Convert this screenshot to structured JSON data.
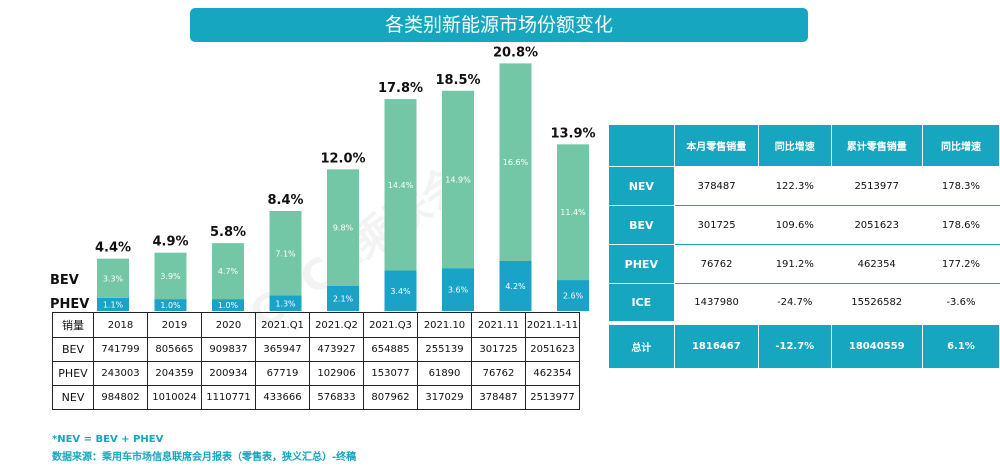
{
  "title": "各类别新能源市场份额变化",
  "series_labels": {
    "bev": "BEV",
    "phev": "PHEV"
  },
  "colors": {
    "bev": "#74c7a6",
    "phev": "#19a3c8",
    "accent": "#16a6bf"
  },
  "chart_data": {
    "type": "bar",
    "stacked": true,
    "categories": [
      "2018",
      "2019",
      "2020",
      "2021.Q1",
      "2021.Q2",
      "2021.Q3",
      "2021.10",
      "2021.11",
      "2021.1-11"
    ],
    "series": [
      {
        "name": "PHEV",
        "values": [
          1.1,
          1.0,
          1.0,
          1.3,
          2.1,
          3.4,
          3.6,
          4.2,
          2.6
        ],
        "labels": [
          "1.1%",
          "1.0%",
          "1.0%",
          "1.3%",
          "2.1%",
          "3.4%",
          "3.6%",
          "4.2%",
          "2.6%"
        ]
      },
      {
        "name": "BEV",
        "values": [
          3.3,
          3.9,
          4.7,
          7.1,
          9.8,
          14.4,
          14.9,
          16.6,
          11.4
        ],
        "labels": [
          "3.3%",
          "3.9%",
          "4.7%",
          "7.1%",
          "9.8%",
          "14.4%",
          "14.9%",
          "16.6%",
          "11.4%"
        ]
      }
    ],
    "totals": [
      4.4,
      4.9,
      5.8,
      8.4,
      12.0,
      17.8,
      18.5,
      20.8,
      13.9
    ],
    "total_labels": [
      "4.4%",
      "4.9%",
      "5.8%",
      "8.4%",
      "12.0%",
      "17.8%",
      "18.5%",
      "20.8%",
      "13.9%"
    ],
    "ylim": [
      0,
      21
    ]
  },
  "sales_table": {
    "header": "销量",
    "columns": [
      "2018",
      "2019",
      "2020",
      "2021.Q1",
      "2021.Q2",
      "2021.Q3",
      "2021.10",
      "2021.11",
      "2021.1-11"
    ],
    "rows": [
      {
        "label": "BEV",
        "values": [
          "741799",
          "805665",
          "909837",
          "365947",
          "473927",
          "654885",
          "255139",
          "301725",
          "2051623"
        ]
      },
      {
        "label": "PHEV",
        "values": [
          "243003",
          "204359",
          "200934",
          "67719",
          "102906",
          "153077",
          "61890",
          "76762",
          "462354"
        ]
      },
      {
        "label": "NEV",
        "values": [
          "984802",
          "1010024",
          "1110771",
          "433666",
          "576833",
          "807962",
          "317029",
          "378487",
          "2513977"
        ]
      }
    ]
  },
  "stats_table": {
    "headers": [
      "",
      "本月零售销量",
      "同比增速",
      "累计零售销量",
      "同比增速"
    ],
    "rows": [
      {
        "label": "NEV",
        "values": [
          "378487",
          "122.3%",
          "2513977",
          "178.3%"
        ]
      },
      {
        "label": "BEV",
        "values": [
          "301725",
          "109.6%",
          "2051623",
          "178.6%"
        ]
      },
      {
        "label": "PHEV",
        "values": [
          "76762",
          "191.2%",
          "462354",
          "177.2%"
        ]
      },
      {
        "label": "ICE",
        "values": [
          "1437980",
          "-24.7%",
          "15526582",
          "-3.6%"
        ]
      }
    ],
    "total": {
      "label": "总计",
      "values": [
        "1816467",
        "-12.7%",
        "18040559",
        "6.1%"
      ]
    }
  },
  "footnotes": {
    "formula": "*NEV = BEV + PHEV",
    "source": "数据来源：乘用车市场信息联席会月报表（零售表，狭义汇总）-终稿"
  },
  "watermark": "CPCA乘联会"
}
